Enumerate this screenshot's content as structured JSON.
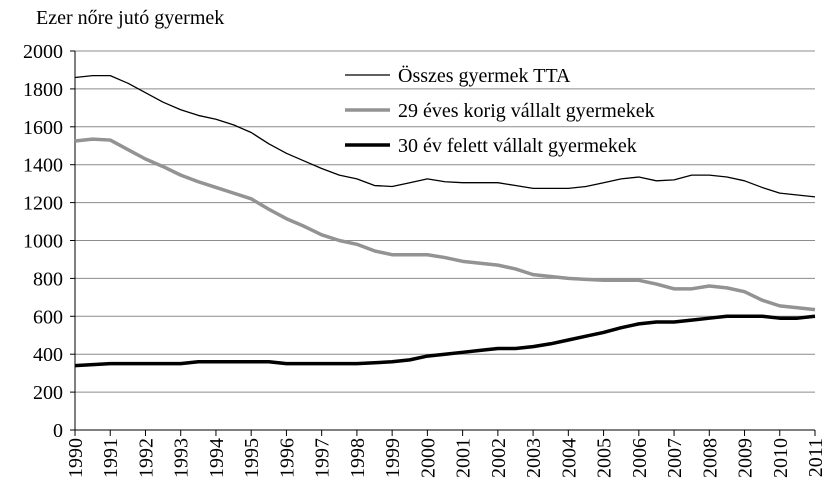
{
  "chart_data": {
    "type": "line",
    "y_label": "Ezer nőre jutó gyermek",
    "x": [
      1990,
      1990.5,
      1991,
      1991.5,
      1992,
      1992.5,
      1993,
      1993.5,
      1994,
      1994.5,
      1995,
      1995.5,
      1996,
      1996.5,
      1997,
      1997.5,
      1998,
      1998.5,
      1999,
      1999.5,
      2000,
      2000.5,
      2001,
      2001.5,
      2002,
      2002.5,
      2003,
      2003.5,
      2004,
      2004.5,
      2005,
      2005.5,
      2006,
      2006.5,
      2007,
      2007.5,
      2008,
      2008.5,
      2009,
      2009.5,
      2010,
      2010.5,
      2011
    ],
    "series": [
      {
        "name": "Összes gyermek TTA",
        "color": "#000000",
        "width": 1.3,
        "values": [
          1860,
          1870,
          1870,
          1830,
          1780,
          1730,
          1690,
          1660,
          1640,
          1610,
          1570,
          1510,
          1460,
          1420,
          1380,
          1345,
          1325,
          1290,
          1285,
          1305,
          1325,
          1310,
          1305,
          1305,
          1305,
          1290,
          1275,
          1275,
          1275,
          1285,
          1305,
          1325,
          1335,
          1315,
          1320,
          1345,
          1345,
          1335,
          1315,
          1280,
          1250,
          1240,
          1230
        ]
      },
      {
        "name": "29 éves korig vállalt gyermekek",
        "color": "#939393",
        "width": 3.5,
        "values": [
          1525,
          1535,
          1530,
          1480,
          1430,
          1390,
          1345,
          1310,
          1280,
          1250,
          1220,
          1165,
          1115,
          1075,
          1030,
          1000,
          980,
          945,
          925,
          925,
          925,
          910,
          890,
          880,
          870,
          850,
          820,
          810,
          800,
          795,
          790,
          790,
          790,
          770,
          745,
          745,
          760,
          750,
          730,
          685,
          655,
          645,
          635
        ]
      },
      {
        "name": "30 év felett vállalt gyermekek",
        "color": "#000000",
        "width": 3.5,
        "values": [
          340,
          345,
          350,
          350,
          350,
          350,
          350,
          360,
          360,
          360,
          360,
          360,
          350,
          350,
          350,
          350,
          350,
          355,
          360,
          370,
          390,
          400,
          410,
          420,
          430,
          430,
          440,
          455,
          475,
          495,
          515,
          540,
          560,
          570,
          570,
          580,
          590,
          600,
          600,
          600,
          590,
          590,
          600
        ]
      }
    ],
    "xlim": [
      1990,
      2011
    ],
    "xticks": [
      1990,
      1991,
      1992,
      1993,
      1994,
      1995,
      1996,
      1997,
      1998,
      1999,
      2000,
      2001,
      2002,
      2003,
      2004,
      2005,
      2006,
      2007,
      2008,
      2009,
      2010,
      2011
    ],
    "ylim": [
      0,
      2000
    ],
    "yticks": [
      0,
      200,
      400,
      600,
      800,
      1000,
      1200,
      1400,
      1600,
      1800,
      2000
    ],
    "grid": true,
    "legend": "top-right"
  }
}
